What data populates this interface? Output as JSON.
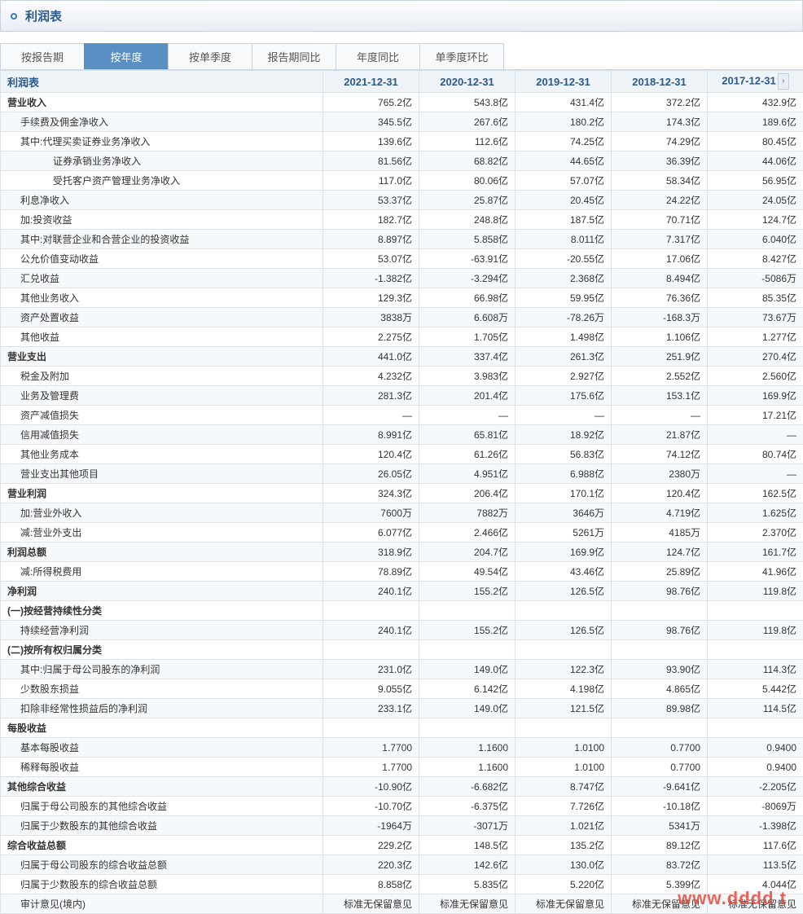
{
  "title": "利润表",
  "tabs": [
    {
      "label": "按报告期",
      "active": false
    },
    {
      "label": "按年度",
      "active": true
    },
    {
      "label": "按单季度",
      "active": false
    },
    {
      "label": "报告期同比",
      "active": false
    },
    {
      "label": "年度同比",
      "active": false
    },
    {
      "label": "单季度环比",
      "active": false
    }
  ],
  "table_header_label": "利润表",
  "columns": [
    "2021-12-31",
    "2020-12-31",
    "2019-12-31",
    "2018-12-31",
    "2017-12-31"
  ],
  "watermark": "www.dddd  t",
  "rows": [
    {
      "label": "营业收入",
      "indent": 0,
      "bold": true,
      "vals": [
        "765.2亿",
        "543.8亿",
        "431.4亿",
        "372.2亿",
        "432.9亿"
      ]
    },
    {
      "label": "手续费及佣金净收入",
      "indent": 1,
      "vals": [
        "345.5亿",
        "267.6亿",
        "180.2亿",
        "174.3亿",
        "189.6亿"
      ]
    },
    {
      "label": "其中:代理买卖证券业务净收入",
      "indent": 1,
      "vals": [
        "139.6亿",
        "112.6亿",
        "74.25亿",
        "74.29亿",
        "80.45亿"
      ]
    },
    {
      "label": "证券承销业务净收入",
      "indent": 3,
      "vals": [
        "81.56亿",
        "68.82亿",
        "44.65亿",
        "36.39亿",
        "44.06亿"
      ]
    },
    {
      "label": "受托客户资产管理业务净收入",
      "indent": 3,
      "vals": [
        "117.0亿",
        "80.06亿",
        "57.07亿",
        "58.34亿",
        "56.95亿"
      ]
    },
    {
      "label": "利息净收入",
      "indent": 1,
      "vals": [
        "53.37亿",
        "25.87亿",
        "20.45亿",
        "24.22亿",
        "24.05亿"
      ]
    },
    {
      "label": "加:投资收益",
      "indent": 1,
      "vals": [
        "182.7亿",
        "248.8亿",
        "187.5亿",
        "70.71亿",
        "124.7亿"
      ]
    },
    {
      "label": "其中:对联营企业和合营企业的投资收益",
      "indent": 1,
      "vals": [
        "8.897亿",
        "5.858亿",
        "8.011亿",
        "7.317亿",
        "6.040亿"
      ]
    },
    {
      "label": "公允价值变动收益",
      "indent": 1,
      "vals": [
        "53.07亿",
        "-63.91亿",
        "-20.55亿",
        "17.06亿",
        "8.427亿"
      ]
    },
    {
      "label": "汇兑收益",
      "indent": 1,
      "vals": [
        "-1.382亿",
        "-3.294亿",
        "2.368亿",
        "8.494亿",
        "-5086万"
      ]
    },
    {
      "label": "其他业务收入",
      "indent": 1,
      "vals": [
        "129.3亿",
        "66.98亿",
        "59.95亿",
        "76.36亿",
        "85.35亿"
      ]
    },
    {
      "label": "资产处置收益",
      "indent": 1,
      "vals": [
        "3838万",
        "6.608万",
        "-78.26万",
        "-168.3万",
        "73.67万"
      ]
    },
    {
      "label": "其他收益",
      "indent": 1,
      "vals": [
        "2.275亿",
        "1.705亿",
        "1.498亿",
        "1.106亿",
        "1.277亿"
      ]
    },
    {
      "label": "营业支出",
      "indent": 0,
      "bold": true,
      "vals": [
        "441.0亿",
        "337.4亿",
        "261.3亿",
        "251.9亿",
        "270.4亿"
      ]
    },
    {
      "label": "税金及附加",
      "indent": 1,
      "vals": [
        "4.232亿",
        "3.983亿",
        "2.927亿",
        "2.552亿",
        "2.560亿"
      ]
    },
    {
      "label": "业务及管理费",
      "indent": 1,
      "vals": [
        "281.3亿",
        "201.4亿",
        "175.6亿",
        "153.1亿",
        "169.9亿"
      ]
    },
    {
      "label": "资产减值损失",
      "indent": 1,
      "vals": [
        "—",
        "—",
        "—",
        "—",
        "17.21亿"
      ]
    },
    {
      "label": "信用减值损失",
      "indent": 1,
      "vals": [
        "8.991亿",
        "65.81亿",
        "18.92亿",
        "21.87亿",
        "—"
      ]
    },
    {
      "label": "其他业务成本",
      "indent": 1,
      "vals": [
        "120.4亿",
        "61.26亿",
        "56.83亿",
        "74.12亿",
        "80.74亿"
      ]
    },
    {
      "label": "营业支出其他项目",
      "indent": 1,
      "vals": [
        "26.05亿",
        "4.951亿",
        "6.988亿",
        "2380万",
        "—"
      ]
    },
    {
      "label": "营业利润",
      "indent": 0,
      "bold": true,
      "vals": [
        "324.3亿",
        "206.4亿",
        "170.1亿",
        "120.4亿",
        "162.5亿"
      ]
    },
    {
      "label": "加:营业外收入",
      "indent": 1,
      "vals": [
        "7600万",
        "7882万",
        "3646万",
        "4.719亿",
        "1.625亿"
      ]
    },
    {
      "label": "减:营业外支出",
      "indent": 1,
      "vals": [
        "6.077亿",
        "2.466亿",
        "5261万",
        "4185万",
        "2.370亿"
      ]
    },
    {
      "label": "利润总额",
      "indent": 0,
      "bold": true,
      "vals": [
        "318.9亿",
        "204.7亿",
        "169.9亿",
        "124.7亿",
        "161.7亿"
      ]
    },
    {
      "label": "减:所得税费用",
      "indent": 1,
      "vals": [
        "78.89亿",
        "49.54亿",
        "43.46亿",
        "25.89亿",
        "41.96亿"
      ]
    },
    {
      "label": "净利润",
      "indent": 0,
      "bold": true,
      "vals": [
        "240.1亿",
        "155.2亿",
        "126.5亿",
        "98.76亿",
        "119.8亿"
      ]
    },
    {
      "label": "(一)按经营持续性分类",
      "indent": 0,
      "bold": true,
      "vals": [
        "",
        "",
        "",
        "",
        ""
      ]
    },
    {
      "label": "持续经营净利润",
      "indent": 1,
      "vals": [
        "240.1亿",
        "155.2亿",
        "126.5亿",
        "98.76亿",
        "119.8亿"
      ]
    },
    {
      "label": "(二)按所有权归属分类",
      "indent": 0,
      "bold": true,
      "vals": [
        "",
        "",
        "",
        "",
        ""
      ]
    },
    {
      "label": "其中:归属于母公司股东的净利润",
      "indent": 1,
      "vals": [
        "231.0亿",
        "149.0亿",
        "122.3亿",
        "93.90亿",
        "114.3亿"
      ]
    },
    {
      "label": "少数股东损益",
      "indent": 1,
      "vals": [
        "9.055亿",
        "6.142亿",
        "4.198亿",
        "4.865亿",
        "5.442亿"
      ]
    },
    {
      "label": "扣除非经常性损益后的净利润",
      "indent": 1,
      "vals": [
        "233.1亿",
        "149.0亿",
        "121.5亿",
        "89.98亿",
        "114.5亿"
      ]
    },
    {
      "label": "每股收益",
      "indent": 0,
      "bold": true,
      "vals": [
        "",
        "",
        "",
        "",
        ""
      ]
    },
    {
      "label": "基本每股收益",
      "indent": 1,
      "vals": [
        "1.7700",
        "1.1600",
        "1.0100",
        "0.7700",
        "0.9400"
      ]
    },
    {
      "label": "稀释每股收益",
      "indent": 1,
      "vals": [
        "1.7700",
        "1.1600",
        "1.0100",
        "0.7700",
        "0.9400"
      ]
    },
    {
      "label": "其他综合收益",
      "indent": 0,
      "bold": true,
      "vals": [
        "-10.90亿",
        "-6.682亿",
        "8.747亿",
        "-9.641亿",
        "-2.205亿"
      ]
    },
    {
      "label": "归属于母公司股东的其他综合收益",
      "indent": 1,
      "vals": [
        "-10.70亿",
        "-6.375亿",
        "7.726亿",
        "-10.18亿",
        "-8069万"
      ]
    },
    {
      "label": "归属于少数股东的其他综合收益",
      "indent": 1,
      "vals": [
        "-1964万",
        "-3071万",
        "1.021亿",
        "5341万",
        "-1.398亿"
      ]
    },
    {
      "label": "综合收益总额",
      "indent": 0,
      "bold": true,
      "vals": [
        "229.2亿",
        "148.5亿",
        "135.2亿",
        "89.12亿",
        "117.6亿"
      ]
    },
    {
      "label": "归属于母公司股东的综合收益总额",
      "indent": 1,
      "vals": [
        "220.3亿",
        "142.6亿",
        "130.0亿",
        "83.72亿",
        "113.5亿"
      ]
    },
    {
      "label": "归属于少数股东的综合收益总额",
      "indent": 1,
      "vals": [
        "8.858亿",
        "5.835亿",
        "5.220亿",
        "5.399亿",
        "4.044亿"
      ]
    },
    {
      "label": "审计意见(境内)",
      "indent": 1,
      "vals": [
        "标准无保留意见",
        "标准无保留意见",
        "标准无保留意见",
        "标准无保留意见",
        "标准无保留意见"
      ]
    }
  ],
  "colors": {
    "header_gradient_top": "#fdfdfe",
    "header_gradient_bottom": "#e9eef4",
    "border": "#c8d3df",
    "tab_active_bg": "#5a8fc4",
    "th_bg": "#eef3f8",
    "th_color": "#2b5a8a",
    "row_alt_bg": "#f6f9fc",
    "watermark_color": "#e74a3a"
  }
}
